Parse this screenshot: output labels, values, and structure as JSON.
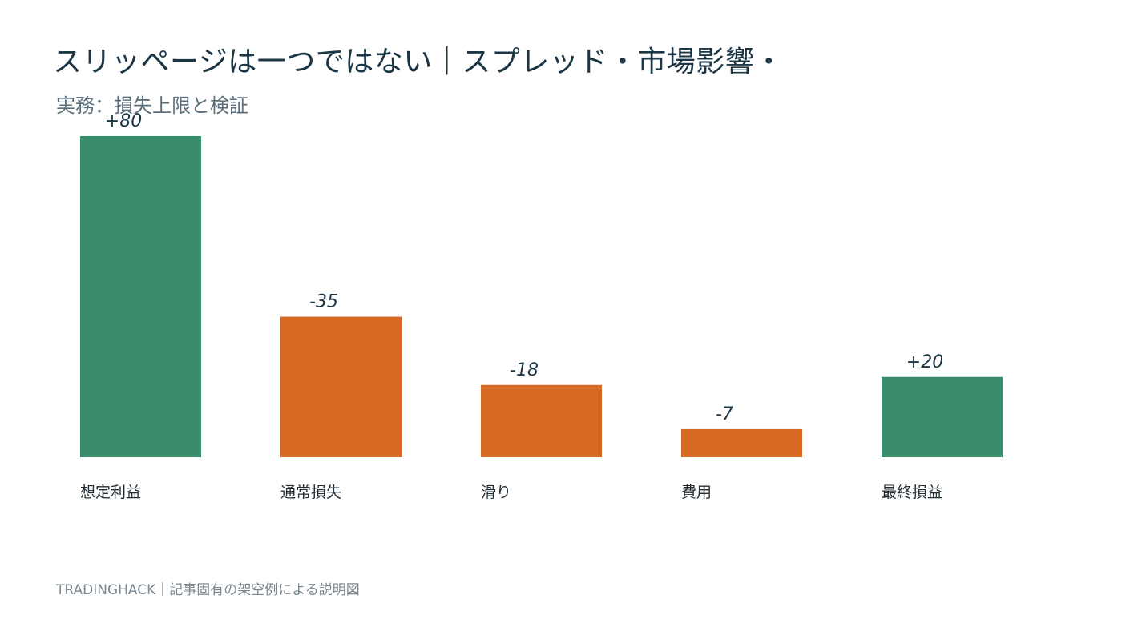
{
  "chart_data": {
    "type": "bar",
    "title": "スリッページは一つではない｜スプレッド・市場影響・",
    "subtitle": "実務：損失上限と検証",
    "categories": [
      "想定利益",
      "通常損失",
      "滑り",
      "費用",
      "最終損益"
    ],
    "values": [
      80,
      -35,
      -18,
      -7,
      20
    ],
    "value_labels": [
      "+80",
      "-35",
      "-18",
      "-7",
      "+20"
    ],
    "colors": {
      "positive": "#3a8c6a",
      "negative": "#d66a24"
    },
    "grid": false,
    "legend": "none"
  },
  "footer": {
    "text": "TRADINGHACK｜記事固有の架空例による説明図"
  }
}
